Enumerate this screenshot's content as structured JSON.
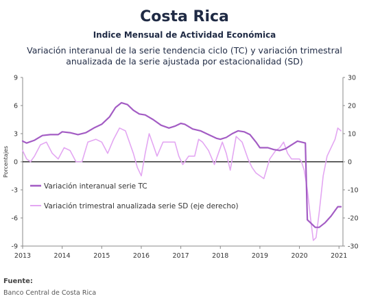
{
  "header": {
    "title": "Costa Rica",
    "subtitle": "Indice Mensual de  Actividad Económica",
    "description_line1": "Variación interanual de la serie tendencia ciclo (TC) y variación trimestral",
    "description_line2": "anualizada de la serie ajustada por estacionalidad (SD)"
  },
  "source": {
    "label": "Fuente:",
    "text": "Banco Central de Costa Rica"
  },
  "colors": {
    "series_tc": "#a35cc4",
    "series_sd": "#e3a6f2",
    "axis": "#888888",
    "zero_line": "#000000"
  },
  "chart_data": {
    "type": "line",
    "ylabel": "Porcentajes",
    "y_left_lim": [
      -9,
      9
    ],
    "y_left_ticks": [
      9,
      6,
      3,
      0,
      -3,
      -6,
      -9
    ],
    "y_right_lim": [
      -30,
      30
    ],
    "y_right_ticks": [
      30,
      20,
      10,
      0,
      -10,
      -20,
      -30
    ],
    "x_ticks": [
      "2013",
      "2014",
      "2015",
      "2016",
      "2017",
      "2018",
      "2019",
      "2020",
      "2021"
    ],
    "legend_position": "middle-left",
    "series": [
      {
        "name": "Variación interanual serie TC",
        "axis": "left",
        "points": [
          [
            2013.0,
            2.2
          ],
          [
            2013.1,
            2.0
          ],
          [
            2013.3,
            2.3
          ],
          [
            2013.5,
            2.8
          ],
          [
            2013.7,
            2.9
          ],
          [
            2013.9,
            2.9
          ],
          [
            2014.0,
            3.2
          ],
          [
            2014.2,
            3.1
          ],
          [
            2014.4,
            2.9
          ],
          [
            2014.6,
            3.1
          ],
          [
            2014.8,
            3.6
          ],
          [
            2015.0,
            4.0
          ],
          [
            2015.2,
            4.8
          ],
          [
            2015.35,
            5.8
          ],
          [
            2015.5,
            6.3
          ],
          [
            2015.65,
            6.1
          ],
          [
            2015.8,
            5.5
          ],
          [
            2015.95,
            5.1
          ],
          [
            2016.1,
            5.0
          ],
          [
            2016.3,
            4.5
          ],
          [
            2016.5,
            3.9
          ],
          [
            2016.7,
            3.6
          ],
          [
            2016.85,
            3.8
          ],
          [
            2017.0,
            4.1
          ],
          [
            2017.1,
            4.0
          ],
          [
            2017.3,
            3.5
          ],
          [
            2017.5,
            3.3
          ],
          [
            2017.7,
            2.9
          ],
          [
            2017.9,
            2.5
          ],
          [
            2018.0,
            2.4
          ],
          [
            2018.15,
            2.6
          ],
          [
            2018.3,
            3.0
          ],
          [
            2018.45,
            3.3
          ],
          [
            2018.6,
            3.2
          ],
          [
            2018.75,
            2.9
          ],
          [
            2018.9,
            2.1
          ],
          [
            2019.0,
            1.5
          ],
          [
            2019.2,
            1.5
          ],
          [
            2019.35,
            1.3
          ],
          [
            2019.5,
            1.2
          ],
          [
            2019.65,
            1.4
          ],
          [
            2019.8,
            1.8
          ],
          [
            2019.95,
            2.2
          ],
          [
            2020.05,
            2.1
          ],
          [
            2020.15,
            2.0
          ],
          [
            2020.2,
            -6.2
          ],
          [
            2020.3,
            -6.6
          ],
          [
            2020.4,
            -7.0
          ],
          [
            2020.5,
            -7.0
          ],
          [
            2020.65,
            -6.5
          ],
          [
            2020.8,
            -5.8
          ],
          [
            2020.9,
            -5.2
          ],
          [
            2020.97,
            -4.8
          ],
          [
            2021.05,
            -4.8
          ]
        ]
      },
      {
        "name": "Variación trimestral anualizada serie SD (eje derecho)",
        "axis": "right",
        "points": [
          [
            2013.0,
            4
          ],
          [
            2013.1,
            1
          ],
          [
            2013.2,
            0
          ],
          [
            2013.3,
            2
          ],
          [
            2013.45,
            6
          ],
          [
            2013.6,
            7
          ],
          [
            2013.75,
            3
          ],
          [
            2013.9,
            1
          ],
          [
            2014.05,
            5
          ],
          [
            2014.2,
            4
          ],
          [
            2014.35,
            0
          ],
          [
            2014.5,
            0
          ],
          [
            2014.65,
            7
          ],
          [
            2014.85,
            8
          ],
          [
            2015.0,
            7
          ],
          [
            2015.15,
            3
          ],
          [
            2015.3,
            8
          ],
          [
            2015.45,
            12
          ],
          [
            2015.6,
            11
          ],
          [
            2015.8,
            3
          ],
          [
            2015.9,
            -2
          ],
          [
            2016.0,
            -5
          ],
          [
            2016.1,
            3
          ],
          [
            2016.2,
            10
          ],
          [
            2016.3,
            6
          ],
          [
            2016.4,
            2
          ],
          [
            2016.55,
            7
          ],
          [
            2016.7,
            7
          ],
          [
            2016.85,
            7
          ],
          [
            2016.95,
            2
          ],
          [
            2017.05,
            -1
          ],
          [
            2017.2,
            2
          ],
          [
            2017.35,
            2
          ],
          [
            2017.45,
            8
          ],
          [
            2017.55,
            7
          ],
          [
            2017.7,
            4
          ],
          [
            2017.85,
            -1
          ],
          [
            2017.95,
            3
          ],
          [
            2018.05,
            7
          ],
          [
            2018.15,
            3
          ],
          [
            2018.25,
            -3
          ],
          [
            2018.4,
            9
          ],
          [
            2018.55,
            7
          ],
          [
            2018.7,
            1
          ],
          [
            2018.8,
            -2
          ],
          [
            2018.9,
            -4
          ],
          [
            2019.0,
            -5
          ],
          [
            2019.1,
            -6
          ],
          [
            2019.25,
            1
          ],
          [
            2019.4,
            4
          ],
          [
            2019.5,
            5
          ],
          [
            2019.6,
            7
          ],
          [
            2019.7,
            3
          ],
          [
            2019.8,
            1
          ],
          [
            2019.9,
            1
          ],
          [
            2020.0,
            1
          ],
          [
            2020.05,
            0
          ],
          [
            2020.12,
            -3
          ],
          [
            2020.2,
            -10
          ],
          [
            2020.28,
            -20
          ],
          [
            2020.35,
            -28
          ],
          [
            2020.42,
            -27
          ],
          [
            2020.5,
            -18
          ],
          [
            2020.6,
            -5
          ],
          [
            2020.7,
            2
          ],
          [
            2020.8,
            5
          ],
          [
            2020.9,
            8
          ],
          [
            2020.97,
            12
          ],
          [
            2021.05,
            11
          ]
        ]
      }
    ]
  }
}
